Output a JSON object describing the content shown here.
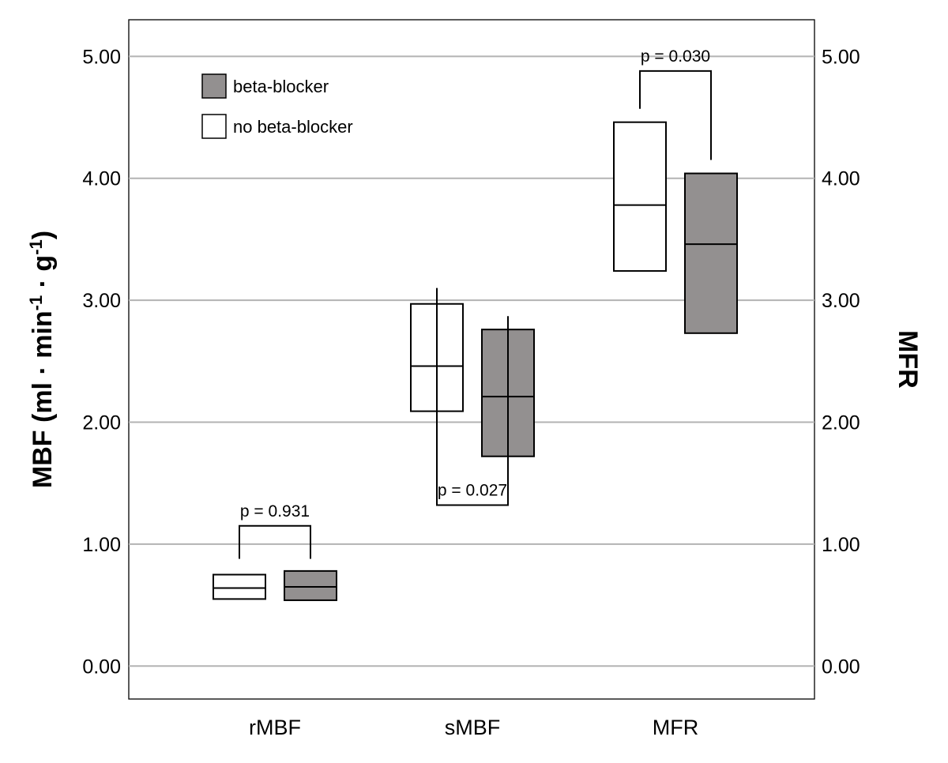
{
  "chart_data": {
    "type": "box",
    "categories": [
      "rMBF",
      "sMBF",
      "MFR"
    ],
    "ylabel": "MBF (ml · min-1 · g-1)",
    "ylabel_parts": {
      "base": "MBF (ml · min",
      "exp1": "-1",
      "mid": " · g",
      "exp2": "-1",
      "end": ")"
    },
    "y2label": "MFR",
    "ylim": [
      -0.27,
      5.3
    ],
    "yticks": [
      0,
      1,
      2,
      3,
      4,
      5
    ],
    "ytick_labels": [
      "0.00",
      "1.00",
      "2.00",
      "3.00",
      "4.00",
      "5.00"
    ],
    "grid": true,
    "legend_position": "top-left",
    "series": [
      {
        "name": "no beta-blocker",
        "color": "#ffffff",
        "boxes": [
          {
            "category": "rMBF",
            "q1": 0.55,
            "median": 0.64,
            "q3": 0.75
          },
          {
            "category": "sMBF",
            "q1": 2.09,
            "median": 2.46,
            "q3": 2.97
          },
          {
            "category": "MFR",
            "q1": 3.24,
            "median": 3.78,
            "q3": 4.46
          }
        ]
      },
      {
        "name": "beta-blocker",
        "color": "#939090",
        "boxes": [
          {
            "category": "rMBF",
            "q1": 0.54,
            "median": 0.65,
            "q3": 0.78
          },
          {
            "category": "sMBF",
            "q1": 1.72,
            "median": 2.21,
            "q3": 2.76
          },
          {
            "category": "MFR",
            "q1": 2.73,
            "median": 3.46,
            "q3": 4.04
          }
        ]
      }
    ],
    "annotations": [
      {
        "category": "rMBF",
        "label": "p = 0.931",
        "bracket_y": 1.15,
        "left_end": 0.88,
        "right_end": 0.88
      },
      {
        "category": "sMBF",
        "label": "p = 0.027",
        "bracket_y": 1.32,
        "left_end": 3.1,
        "right_end": 2.87
      },
      {
        "category": "MFR",
        "label": "p = 0.030",
        "bracket_y": 4.88,
        "left_end": 4.57,
        "right_end": 4.15
      }
    ]
  }
}
